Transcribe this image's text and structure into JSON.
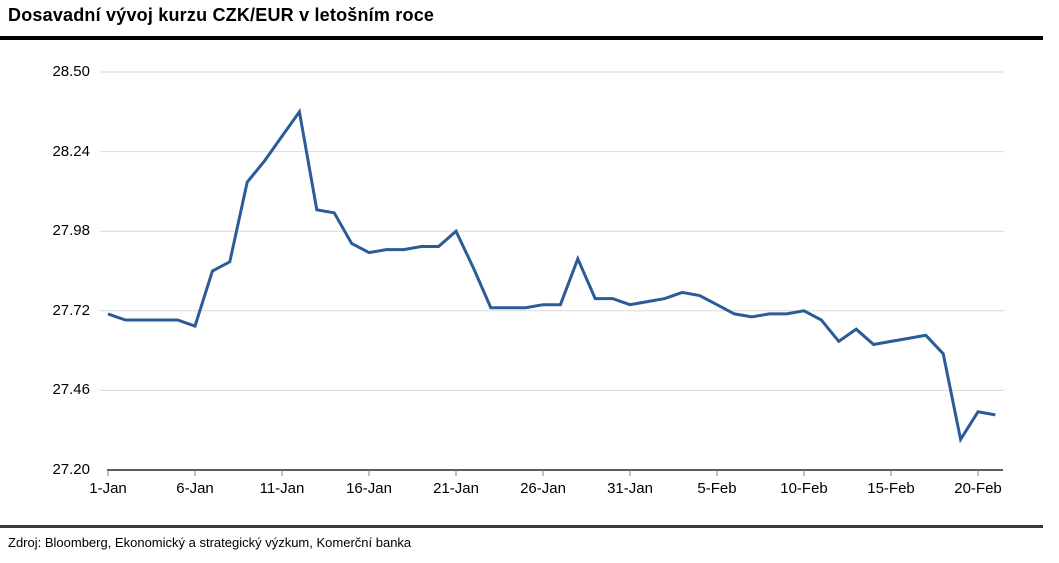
{
  "page": {
    "title": "Dosavadní vývoj kurzu CZK/EUR v letošním roce",
    "source": "Zdroj: Bloomberg, Ekonomický a strategický výzkum, Komerční banka"
  },
  "colors": {
    "line": "#2B5B98",
    "gridline": "#D9D9D9",
    "axis": "#262626",
    "tick": "#7F7F7F",
    "title_rule": "#000000",
    "source_rule": "#3B3B3B",
    "text": "#000000"
  },
  "chart_data": {
    "type": "line",
    "title": "Dosavadní vývoj kurzu CZK/EUR v letošním roce",
    "xlabel": "",
    "ylabel": "",
    "ylim": [
      27.2,
      28.5
    ],
    "grid": true,
    "legend": "none",
    "ytick_values": [
      28.5,
      28.24,
      27.98,
      27.72,
      27.46,
      27.2
    ],
    "ytick_labels": [
      "28.50",
      "28.24",
      "27.98",
      "27.72",
      "27.46",
      "27.20"
    ],
    "xtick_labels": [
      "1-Jan",
      "6-Jan",
      "11-Jan",
      "16-Jan",
      "21-Jan",
      "26-Jan",
      "31-Jan",
      "5-Feb",
      "10-Feb",
      "15-Feb",
      "20-Feb"
    ],
    "series": [
      {
        "name": "CZK/EUR",
        "dates": [
          "1-Jan",
          "2-Jan",
          "3-Jan",
          "4-Jan",
          "5-Jan",
          "6-Jan",
          "7-Jan",
          "8-Jan",
          "9-Jan",
          "10-Jan",
          "11-Jan",
          "12-Jan",
          "13-Jan",
          "14-Jan",
          "15-Jan",
          "16-Jan",
          "17-Jan",
          "18-Jan",
          "19-Jan",
          "20-Jan",
          "21-Jan",
          "22-Jan",
          "23-Jan",
          "24-Jan",
          "25-Jan",
          "26-Jan",
          "27-Jan",
          "28-Jan",
          "29-Jan",
          "30-Jan",
          "31-Jan",
          "1-Feb",
          "2-Feb",
          "3-Feb",
          "4-Feb",
          "5-Feb",
          "6-Feb",
          "7-Feb",
          "8-Feb",
          "9-Feb",
          "10-Feb",
          "11-Feb",
          "12-Feb",
          "13-Feb",
          "14-Feb",
          "15-Feb",
          "16-Feb",
          "17-Feb",
          "18-Feb",
          "19-Feb",
          "20-Feb",
          "21-Feb"
        ],
        "values": [
          27.71,
          27.69,
          27.69,
          27.69,
          27.69,
          27.67,
          27.85,
          27.88,
          28.14,
          28.21,
          28.29,
          28.37,
          28.05,
          28.04,
          27.94,
          27.91,
          27.92,
          27.92,
          27.93,
          27.93,
          27.98,
          27.86,
          27.73,
          27.73,
          27.73,
          27.74,
          27.74,
          27.89,
          27.76,
          27.76,
          27.74,
          27.75,
          27.76,
          27.78,
          27.77,
          27.74,
          27.71,
          27.7,
          27.71,
          27.71,
          27.72,
          27.69,
          27.62,
          27.66,
          27.61,
          27.62,
          27.63,
          27.64,
          27.58,
          27.3,
          27.39,
          27.38
        ]
      }
    ]
  }
}
